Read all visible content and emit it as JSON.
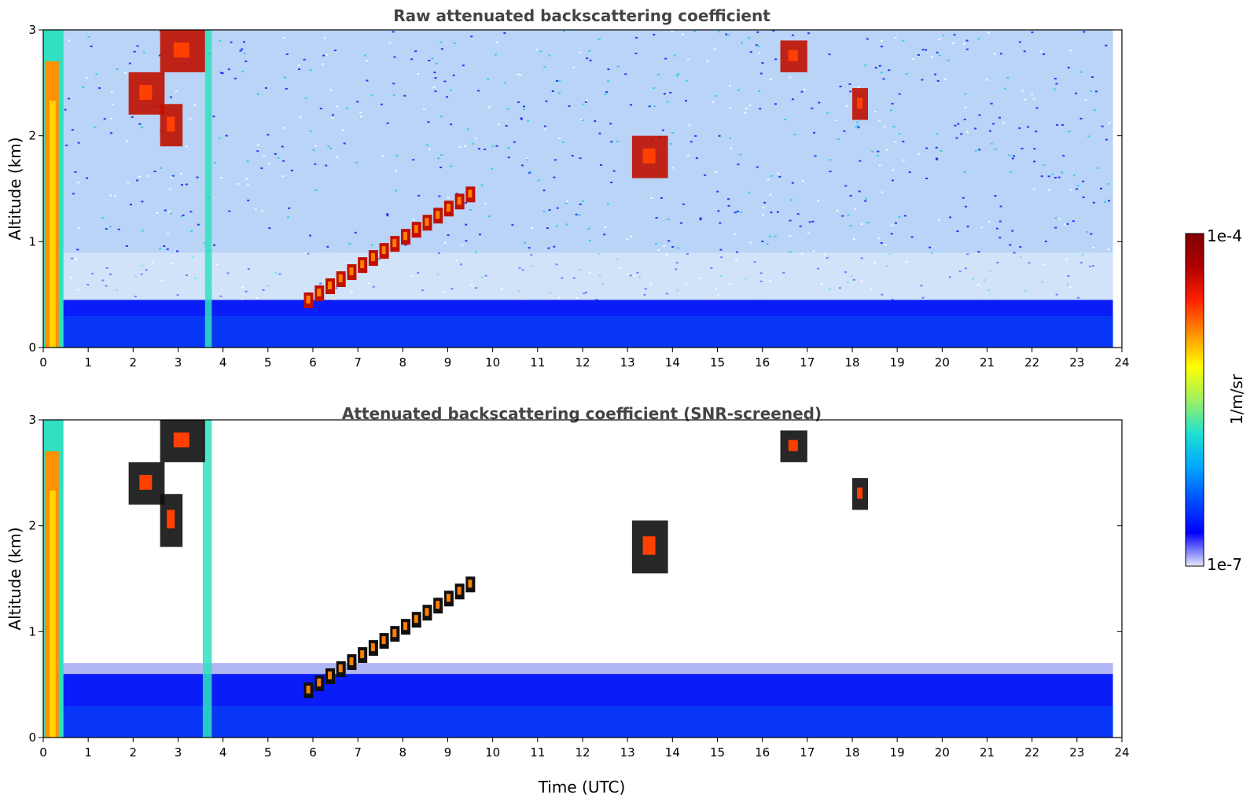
{
  "figure": {
    "colorbar": {
      "max_label": "1e-4",
      "min_label": "1e-7",
      "unit_label": "1/m/sr",
      "colormap_stops": [
        "#e8e8f8",
        "#0000ff",
        "#0050ff",
        "#00a8ff",
        "#20e0d0",
        "#a0f060",
        "#ffff00",
        "#ff9000",
        "#ff2000",
        "#b00000",
        "#800000"
      ]
    },
    "xaxis_label": "Time (UTC)",
    "yaxis_label": "Altitude (km)"
  },
  "chart_data": [
    {
      "type": "heatmap",
      "title": "Raw attenuated backscattering coefficient",
      "xlabel": "",
      "ylabel": "Altitude (km)",
      "xlim": [
        0,
        24
      ],
      "ylim": [
        0,
        3
      ],
      "xticks": [
        "0",
        "1",
        "2",
        "3",
        "4",
        "5",
        "6",
        "7",
        "8",
        "9",
        "10",
        "11",
        "12",
        "13",
        "14",
        "15",
        "16",
        "17",
        "18",
        "19",
        "20",
        "21",
        "22",
        "23",
        "24"
      ],
      "yticks": [
        "0",
        "1",
        "2",
        "3"
      ],
      "data_end_time": 23.8,
      "boundary_layer_top_km": 0.45,
      "colorbar_range": [
        1e-07,
        0.0001
      ],
      "colorbar_label": "1/m/sr",
      "features": [
        {
          "name": "low cloud / precipitation",
          "time": [
            0.0,
            0.45
          ],
          "alt": [
            0.0,
            3.0
          ],
          "level": "high"
        },
        {
          "name": "fall streak",
          "time": [
            3.6,
            3.75
          ],
          "alt": [
            0.0,
            3.0
          ],
          "level": "medium"
        },
        {
          "name": "cloud",
          "time": [
            1.9,
            2.7
          ],
          "alt": [
            2.2,
            2.6
          ],
          "level": "high"
        },
        {
          "name": "cloud",
          "time": [
            2.6,
            3.1
          ],
          "alt": [
            1.9,
            2.3
          ],
          "level": "high"
        },
        {
          "name": "cloud",
          "time": [
            2.6,
            3.6
          ],
          "alt": [
            2.6,
            3.0
          ],
          "level": "high"
        },
        {
          "name": "rising cloud layer",
          "time": [
            5.8,
            9.4
          ],
          "alt": [
            0.4,
            1.4
          ],
          "level": "high"
        },
        {
          "name": "cloud",
          "time": [
            13.1,
            13.9
          ],
          "alt": [
            1.6,
            2.0
          ],
          "level": "high"
        },
        {
          "name": "cloud",
          "time": [
            16.4,
            17.0
          ],
          "alt": [
            2.6,
            2.9
          ],
          "level": "high"
        },
        {
          "name": "cloud",
          "time": [
            18.0,
            18.35
          ],
          "alt": [
            2.15,
            2.45
          ],
          "level": "high"
        }
      ]
    },
    {
      "type": "heatmap",
      "title": "Attenuated backscattering coefficient (SNR-screened)",
      "xlabel": "Time (UTC)",
      "ylabel": "Altitude (km)",
      "xlim": [
        0,
        24
      ],
      "ylim": [
        0,
        3
      ],
      "xticks": [
        "0",
        "1",
        "2",
        "3",
        "4",
        "5",
        "6",
        "7",
        "8",
        "9",
        "10",
        "11",
        "12",
        "13",
        "14",
        "15",
        "16",
        "17",
        "18",
        "19",
        "20",
        "21",
        "22",
        "23",
        "24"
      ],
      "yticks": [
        "0",
        "1",
        "2",
        "3"
      ],
      "data_end_time": 23.8,
      "boundary_layer_top_km": 0.6,
      "colorbar_range": [
        1e-07,
        0.0001
      ],
      "colorbar_label": "1/m/sr",
      "features": [
        {
          "name": "low cloud / precipitation",
          "time": [
            0.0,
            0.45
          ],
          "alt": [
            0.0,
            3.0
          ],
          "level": "high"
        },
        {
          "name": "fall streak",
          "time": [
            3.55,
            3.75
          ],
          "alt": [
            0.0,
            3.0
          ],
          "level": "medium"
        },
        {
          "name": "cloud",
          "time": [
            1.9,
            2.7
          ],
          "alt": [
            2.2,
            2.6
          ],
          "level": "high"
        },
        {
          "name": "cloud",
          "time": [
            2.6,
            3.1
          ],
          "alt": [
            1.8,
            2.3
          ],
          "level": "high"
        },
        {
          "name": "cloud",
          "time": [
            2.6,
            3.6
          ],
          "alt": [
            2.6,
            3.0
          ],
          "level": "high"
        },
        {
          "name": "rising cloud layer",
          "time": [
            5.8,
            9.4
          ],
          "alt": [
            0.4,
            1.4
          ],
          "level": "high"
        },
        {
          "name": "cloud",
          "time": [
            13.1,
            13.9
          ],
          "alt": [
            1.55,
            2.05
          ],
          "level": "high"
        },
        {
          "name": "cloud",
          "time": [
            16.4,
            17.0
          ],
          "alt": [
            2.6,
            2.9
          ],
          "level": "high"
        },
        {
          "name": "cloud",
          "time": [
            18.0,
            18.35
          ],
          "alt": [
            2.15,
            2.45
          ],
          "level": "high"
        }
      ]
    }
  ]
}
